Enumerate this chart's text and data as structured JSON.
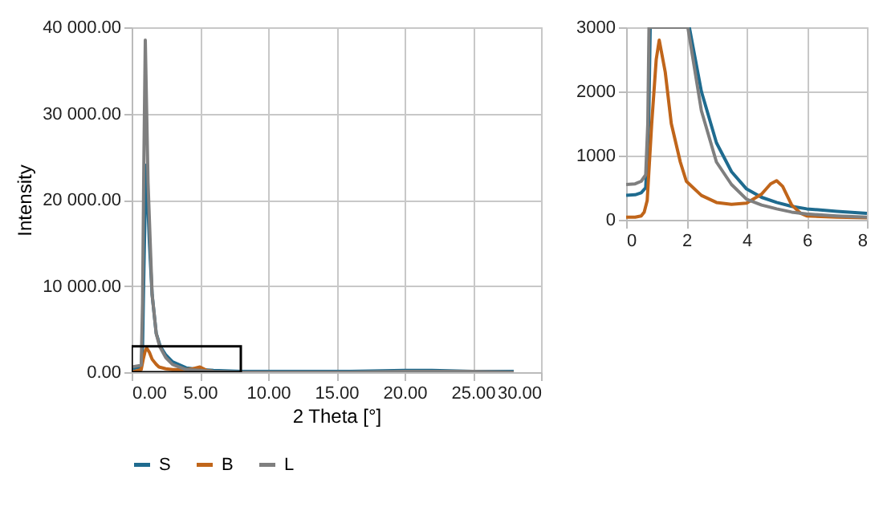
{
  "chart_data": [
    {
      "type": "line",
      "xlabel": "2 Theta [°]",
      "ylabel": "Intensity",
      "legend": "bottom",
      "grid": true,
      "xlim": [
        0,
        30
      ],
      "ylim": [
        0,
        40000
      ],
      "xticks": [
        {
          "value": 0,
          "label": "0.00"
        },
        {
          "value": 5,
          "label": "5.00"
        },
        {
          "value": 10,
          "label": "10.00"
        },
        {
          "value": 15,
          "label": "15.00"
        },
        {
          "value": 20,
          "label": "20.00"
        },
        {
          "value": 25,
          "label": "25.00"
        },
        {
          "value": 30,
          "label": "30.00"
        }
      ],
      "yticks": [
        {
          "value": 0,
          "label": "0.00"
        },
        {
          "value": 10000,
          "label": "10 000.00"
        },
        {
          "value": 20000,
          "label": "20 000.00"
        },
        {
          "value": 30000,
          "label": "30 000.00"
        },
        {
          "value": 40000,
          "label": "40 000.00"
        }
      ],
      "series": [
        {
          "name": "S",
          "color": "#1f6b8f",
          "x": [
            0,
            0.7,
            0.8,
            0.9,
            1.05,
            1.2,
            1.3,
            1.5,
            1.8,
            2.1,
            2.5,
            3,
            4,
            5,
            6,
            8,
            12,
            16,
            20,
            22,
            25,
            28
          ],
          "values": [
            400,
            600,
            3000,
            12000,
            24000,
            19000,
            15000,
            9000,
            4500,
            3000,
            2000,
            1200,
            500,
            300,
            200,
            100,
            100,
            100,
            200,
            200,
            100,
            100
          ]
        },
        {
          "name": "B",
          "color": "#c0651a",
          "x": [
            0,
            0.7,
            0.85,
            1.0,
            1.1,
            1.3,
            1.5,
            1.8,
            2.0,
            2.5,
            3,
            4,
            4.5,
            5.0,
            5.5,
            6
          ],
          "values": [
            0,
            300,
            1500,
            2500,
            2800,
            2300,
            1500,
            900,
            600,
            400,
            300,
            300,
            400,
            600,
            200,
            100
          ]
        },
        {
          "name": "L",
          "color": "#7f7f7f",
          "x": [
            0,
            0.7,
            0.8,
            0.9,
            1.0,
            1.2,
            1.5,
            1.8,
            2.05,
            2.5,
            3,
            3.5,
            4,
            5,
            6,
            8,
            12,
            16,
            20,
            22,
            25,
            28
          ],
          "values": [
            600,
            800,
            8000,
            25000,
            38500,
            22000,
            9000,
            4500,
            3000,
            1700,
            900,
            600,
            300,
            200,
            100,
            0,
            0,
            0,
            100,
            100,
            100,
            0
          ]
        }
      ]
    },
    {
      "type": "line",
      "grid": true,
      "xlim": [
        0,
        8
      ],
      "ylim": [
        0,
        3000
      ],
      "xticks": [
        0,
        2,
        4,
        6,
        8
      ],
      "yticks": [
        0,
        {
          "value": 1000,
          "label": "1000"
        },
        {
          "value": 2000,
          "label": "2000"
        },
        {
          "value": 3000,
          "label": "3000"
        }
      ],
      "series": [
        {
          "color": "#1f6b8f",
          "x": [
            0,
            0.3,
            0.5,
            0.65,
            0.75,
            0.8,
            2.1,
            2.5,
            3,
            3.5,
            4,
            4.5,
            5,
            5.5,
            6,
            7,
            8
          ],
          "values": [
            380,
            390,
            420,
            500,
            1500,
            3000,
            3000,
            2000,
            1200,
            750,
            480,
            350,
            270,
            210,
            170,
            130,
            100
          ]
        },
        {
          "color": "#c0651a",
          "x": [
            0,
            0.3,
            0.5,
            0.6,
            0.7,
            0.85,
            1.0,
            1.1,
            1.3,
            1.5,
            1.8,
            2.0,
            2.5,
            3,
            3.5,
            4,
            4.5,
            4.8,
            5.0,
            5.2,
            5.5,
            5.8,
            6,
            7,
            8
          ],
          "values": [
            40,
            40,
            60,
            120,
            300,
            1500,
            2500,
            2800,
            2300,
            1500,
            900,
            600,
            380,
            270,
            240,
            260,
            400,
            560,
            610,
            520,
            230,
            100,
            60,
            40,
            30
          ]
        },
        {
          "color": "#7f7f7f",
          "x": [
            0,
            0.3,
            0.5,
            0.65,
            0.72,
            0.76,
            2.05,
            2.5,
            3,
            3.5,
            4,
            4.5,
            5,
            5.5,
            6,
            7,
            8
          ],
          "values": [
            550,
            560,
            600,
            700,
            1500,
            3000,
            3000,
            1700,
            900,
            550,
            320,
            230,
            170,
            120,
            90,
            60,
            40
          ]
        }
      ]
    }
  ]
}
